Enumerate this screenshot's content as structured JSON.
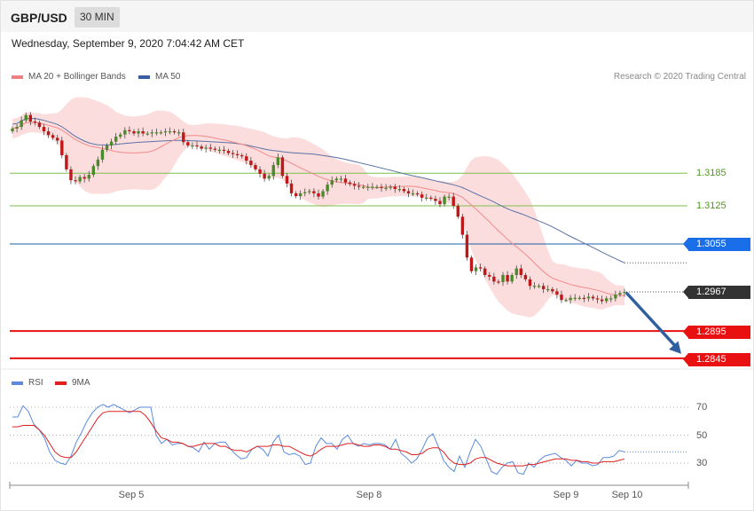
{
  "header": {
    "symbol": "GBP/USD",
    "timeframe": "30 MIN"
  },
  "datetime": "Wednesday, September 9, 2020 7:04:42 AM CET",
  "legend": {
    "ma20": {
      "label": "MA 20 + Bollinger Bands",
      "color": "#f08080"
    },
    "ma50": {
      "label": "MA 50",
      "color": "#3a5fa0"
    }
  },
  "copyright": "Research © 2020 Trading Central",
  "rsi_legend": {
    "rsi": {
      "label": "RSI",
      "color": "#5b8bdc"
    },
    "ma9": {
      "label": "9MA",
      "color": "#e02020"
    }
  },
  "colors": {
    "bull": "#4a8a2a",
    "bear": "#c01818",
    "band": "#fcd7d7",
    "green_level": "#7cbf4a",
    "blue_level": "#1a5fa8",
    "red_level": "#e81010",
    "arrow": "#2f5f9f"
  },
  "chart_data": [
    {
      "type": "candlestick",
      "title": "",
      "y_range": [
        1.2817,
        1.3362
      ],
      "x_ticks": [
        "Sep 5",
        "Sep 8",
        "Sep 9",
        "Sep 10"
      ],
      "levels": [
        {
          "value": 1.3185,
          "label": "1.3185",
          "style": "green"
        },
        {
          "value": 1.3125,
          "label": "1.3125",
          "style": "green"
        },
        {
          "value": 1.3055,
          "label": "1.3055",
          "style": "blue"
        },
        {
          "value": 1.2967,
          "label": "1.2967",
          "style": "current"
        },
        {
          "value": 1.2895,
          "label": "1.2895",
          "style": "red"
        },
        {
          "value": 1.2845,
          "label": "1.2845",
          "style": "red"
        }
      ],
      "forecast": {
        "from": 1.2967,
        "to": 1.2845,
        "direction": "down"
      },
      "candles": [
        1.3267,
        1.327,
        1.3282,
        1.3292,
        1.328,
        1.3278,
        1.327,
        1.3262,
        1.3255,
        1.325,
        1.3245,
        1.3218,
        1.3192,
        1.3172,
        1.317,
        1.3178,
        1.3175,
        1.3182,
        1.3198,
        1.321,
        1.3228,
        1.3236,
        1.3243,
        1.3252,
        1.3256,
        1.3264,
        1.3262,
        1.3258,
        1.3262,
        1.3258,
        1.3258,
        1.326,
        1.326,
        1.326,
        1.3262,
        1.3262,
        1.326,
        1.326,
        1.3242,
        1.3236,
        1.3236,
        1.3234,
        1.323,
        1.3232,
        1.323,
        1.3228,
        1.3228,
        1.3226,
        1.3222,
        1.322,
        1.3218,
        1.3216,
        1.3208,
        1.32,
        1.3192,
        1.3184,
        1.3175,
        1.318,
        1.32,
        1.3214,
        1.318,
        1.3166,
        1.3148,
        1.3143,
        1.3148,
        1.315,
        1.3152,
        1.3148,
        1.3142,
        1.3152,
        1.3164,
        1.3172,
        1.3175,
        1.3175,
        1.3168,
        1.3165,
        1.3162,
        1.316,
        1.316,
        1.316,
        1.316,
        1.316,
        1.3158,
        1.3158,
        1.316,
        1.3156,
        1.3156,
        1.3152,
        1.3148,
        1.3148,
        1.3146,
        1.314,
        1.314,
        1.3138,
        1.3134,
        1.3128,
        1.3142,
        1.3142,
        1.3125,
        1.3105,
        1.3072,
        1.303,
        1.3005,
        1.3012,
        1.301,
        1.2998,
        1.2995,
        1.2986,
        1.2985,
        1.2998,
        1.2986,
        1.2998,
        1.301,
        1.2998,
        1.299,
        1.2978,
        1.2978,
        1.2978,
        1.2972,
        1.2972,
        1.2968,
        1.2962,
        1.2952,
        1.2952,
        1.2956,
        1.2956,
        1.2956,
        1.2955,
        1.2958,
        1.2955,
        1.2953,
        1.295,
        1.2955,
        1.2955,
        1.2962,
        1.2965,
        1.2967
      ]
    },
    {
      "type": "line",
      "title": "RSI",
      "y_ticks": [
        30,
        50,
        70
      ],
      "y_range": [
        0,
        100
      ],
      "series": [
        {
          "name": "RSI",
          "values": [
            63,
            63,
            71,
            67,
            58,
            54,
            48,
            38,
            32,
            30,
            29,
            35,
            45,
            52,
            60,
            66,
            70,
            72,
            70,
            72,
            70,
            68,
            66,
            68,
            70,
            70,
            70,
            50,
            44,
            47,
            43,
            44,
            44,
            42,
            41,
            38,
            45,
            40,
            44,
            45,
            45,
            40,
            36,
            33,
            34,
            40,
            42,
            40,
            35,
            45,
            50,
            38,
            36,
            37,
            35,
            29,
            30,
            42,
            48,
            44,
            44,
            40,
            47,
            50,
            44,
            42,
            44,
            43,
            44,
            44,
            43,
            40,
            47,
            37,
            34,
            30,
            33,
            40,
            48,
            51,
            42,
            32,
            27,
            24,
            35,
            27,
            38,
            47,
            42,
            33,
            24,
            22,
            27,
            30,
            31,
            23,
            22,
            30,
            27,
            32,
            35,
            36,
            37,
            34,
            32,
            28,
            32,
            30,
            30,
            28,
            29,
            34,
            34,
            35,
            39,
            38
          ]
        },
        {
          "name": "9MA",
          "values": [
            56,
            56,
            57,
            57,
            57,
            54,
            50,
            44,
            38,
            35,
            34,
            34,
            38,
            44,
            50,
            56,
            62,
            66,
            67,
            67,
            67,
            67,
            67,
            67,
            67,
            64,
            59,
            53,
            48,
            47,
            45,
            45,
            44,
            42,
            42,
            43,
            44,
            44,
            44,
            42,
            42,
            40,
            39,
            39,
            38,
            40,
            42,
            42,
            42,
            43,
            43,
            42,
            42,
            40,
            38,
            36,
            35,
            37,
            40,
            42,
            42,
            42,
            43,
            44,
            44,
            43,
            42,
            42,
            43,
            43,
            42,
            40,
            40,
            39,
            38,
            36,
            36,
            37,
            40,
            41,
            41,
            38,
            33,
            30,
            29,
            29,
            30,
            33,
            34,
            34,
            32,
            30,
            29,
            28,
            28,
            28,
            28,
            29,
            29,
            30,
            31,
            32,
            33,
            33,
            33,
            32,
            32,
            31,
            31,
            30,
            30,
            31,
            31,
            31,
            32,
            33
          ]
        }
      ]
    }
  ]
}
